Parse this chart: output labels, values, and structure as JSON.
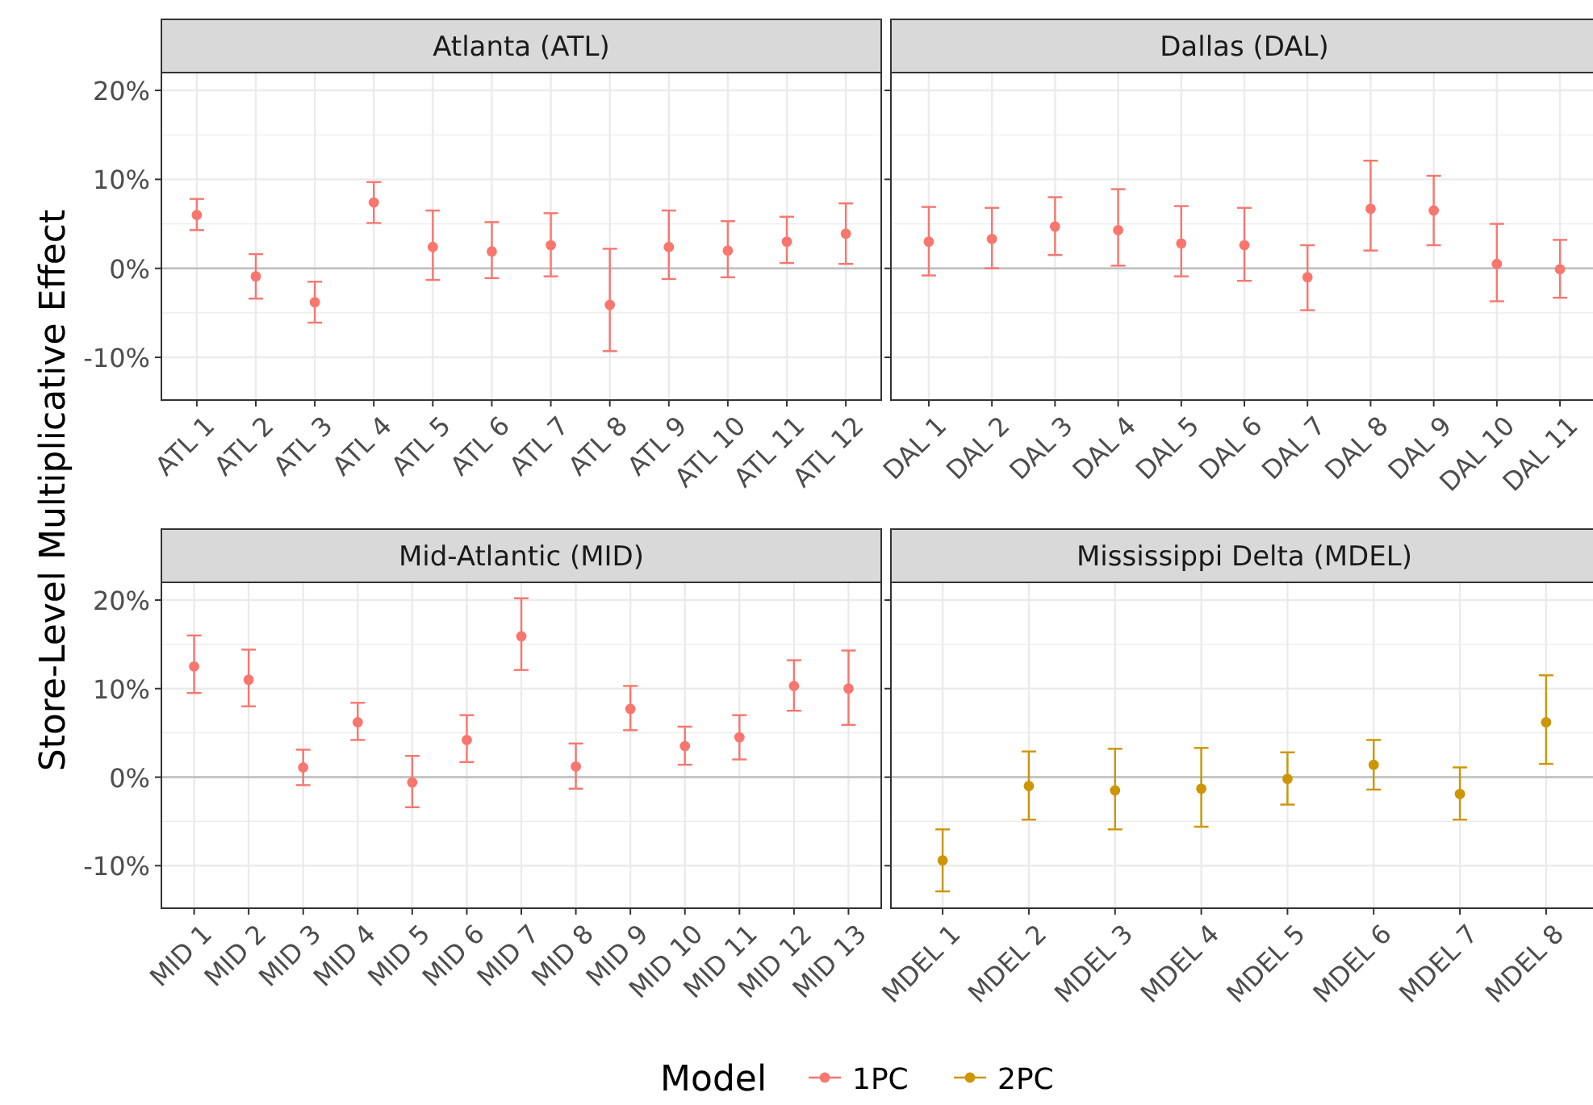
{
  "chart_data": [
    {
      "type": "scatter",
      "title": "Atlanta (ATL)",
      "ylabel": "Store-Level Multiplicative Effect",
      "categories": [
        "ATL 1",
        "ATL 2",
        "ATL 3",
        "ATL 4",
        "ATL 5",
        "ATL 6",
        "ATL 7",
        "ATL 8",
        "ATL 9",
        "ATL 10",
        "ATL 11",
        "ATL 12"
      ],
      "ylim": [
        -14.8,
        22
      ],
      "yticks": [
        {
          "value": -10,
          "label": "-10%"
        },
        {
          "value": 0,
          "label": "0%"
        },
        {
          "value": 10,
          "label": "10%"
        },
        {
          "value": 20,
          "label": "20%"
        }
      ],
      "grid": true,
      "marker": "circle",
      "ref_lines": [
        {
          "axis": "y",
          "value": 0,
          "color": "#bebebe"
        }
      ],
      "series": [
        {
          "name": "1PC",
          "color": "#f8766d",
          "values": [
            6.0,
            -0.9,
            -3.8,
            7.4,
            2.4,
            1.9,
            2.6,
            -4.1,
            2.4,
            2.0,
            3.0,
            3.9
          ],
          "errors": [
            [
              4.3,
              7.8
            ],
            [
              -3.4,
              1.6
            ],
            [
              -6.1,
              -1.5
            ],
            [
              5.1,
              9.7
            ],
            [
              -1.3,
              6.5
            ],
            [
              -1.1,
              5.2
            ],
            [
              -0.9,
              6.2
            ],
            [
              -9.3,
              2.2
            ],
            [
              -1.2,
              6.5
            ],
            [
              -1.0,
              5.3
            ],
            [
              0.6,
              5.8
            ],
            [
              0.5,
              7.3
            ]
          ]
        }
      ]
    },
    {
      "type": "scatter",
      "title": "Dallas (DAL)",
      "categories": [
        "DAL 1",
        "DAL 2",
        "DAL 3",
        "DAL 4",
        "DAL 5",
        "DAL 6",
        "DAL 7",
        "DAL 8",
        "DAL 9",
        "DAL 10",
        "DAL 11"
      ],
      "ylim": [
        -14.8,
        22
      ],
      "yticks": [
        {
          "value": -10,
          "label": null
        },
        {
          "value": 0,
          "label": null
        },
        {
          "value": 10,
          "label": null
        },
        {
          "value": 20,
          "label": null
        }
      ],
      "tick_labels": "x",
      "grid": true,
      "marker": "circle",
      "ref_lines": [
        {
          "axis": "y",
          "value": 0,
          "color": "#bebebe"
        }
      ],
      "series": [
        {
          "name": "1PC",
          "color": "#f8766d",
          "values": [
            3.0,
            3.3,
            4.7,
            4.3,
            2.8,
            2.6,
            -1.0,
            6.7,
            6.5,
            0.5,
            -0.1
          ],
          "errors": [
            [
              -0.8,
              6.9
            ],
            [
              0.0,
              6.8
            ],
            [
              1.5,
              8.0
            ],
            [
              0.3,
              8.9
            ],
            [
              -0.9,
              7.0
            ],
            [
              -1.4,
              6.8
            ],
            [
              -4.7,
              2.6
            ],
            [
              2.0,
              12.1
            ],
            [
              2.6,
              10.4
            ],
            [
              -3.7,
              5.0
            ],
            [
              -3.3,
              3.2
            ]
          ]
        }
      ]
    },
    {
      "type": "scatter",
      "title": "Mid-Atlantic (MID)",
      "categories": [
        "MID 1",
        "MID 2",
        "MID 3",
        "MID 4",
        "MID 5",
        "MID 6",
        "MID 7",
        "MID 8",
        "MID 9",
        "MID 10",
        "MID 11",
        "MID 12",
        "MID 13"
      ],
      "ylim": [
        -14.8,
        22
      ],
      "yticks": [
        {
          "value": -10,
          "label": "-10%"
        },
        {
          "value": 0,
          "label": "0%"
        },
        {
          "value": 10,
          "label": "10%"
        },
        {
          "value": 20,
          "label": "20%"
        }
      ],
      "grid": true,
      "marker": "circle",
      "ref_lines": [
        {
          "axis": "y",
          "value": 0,
          "color": "#bebebe"
        }
      ],
      "series": [
        {
          "name": "1PC",
          "color": "#f8766d",
          "values": [
            12.5,
            11.0,
            1.1,
            6.2,
            -0.6,
            4.2,
            15.9,
            1.2,
            7.7,
            3.5,
            4.5,
            10.3,
            10.0
          ],
          "errors": [
            [
              9.5,
              16.0
            ],
            [
              8.0,
              14.4
            ],
            [
              -0.9,
              3.1
            ],
            [
              4.2,
              8.4
            ],
            [
              -3.4,
              2.4
            ],
            [
              1.7,
              7.0
            ],
            [
              12.1,
              20.2
            ],
            [
              -1.3,
              3.8
            ],
            [
              5.3,
              10.3
            ],
            [
              1.4,
              5.7
            ],
            [
              2.0,
              7.0
            ],
            [
              7.5,
              13.2
            ],
            [
              5.9,
              14.3
            ]
          ]
        }
      ]
    },
    {
      "type": "scatter",
      "title": "Mississippi Delta (MDEL)",
      "categories": [
        "MDEL 1",
        "MDEL 2",
        "MDEL 3",
        "MDEL 4",
        "MDEL 5",
        "MDEL 6",
        "MDEL 7",
        "MDEL 8"
      ],
      "ylim": [
        -14.8,
        22
      ],
      "yticks": [
        {
          "value": -10,
          "label": null
        },
        {
          "value": 0,
          "label": null
        },
        {
          "value": 10,
          "label": null
        },
        {
          "value": 20,
          "label": null
        }
      ],
      "tick_labels": "x",
      "grid": true,
      "marker": "circle",
      "legend": "bottom",
      "legend_title": "Model",
      "ref_lines": [
        {
          "axis": "y",
          "value": 0,
          "color": "#bebebe"
        }
      ],
      "series": [
        {
          "name": "2PC",
          "color": "#cd9600",
          "values": [
            -9.4,
            -1.0,
            -1.5,
            -1.3,
            -0.2,
            1.4,
            -1.9,
            6.2
          ],
          "errors": [
            [
              -12.9,
              -5.9
            ],
            [
              -4.8,
              2.9
            ],
            [
              -5.9,
              3.2
            ],
            [
              -5.6,
              3.3
            ],
            [
              -3.1,
              2.8
            ],
            [
              -1.4,
              4.2
            ],
            [
              -4.8,
              1.1
            ],
            [
              1.5,
              11.5
            ]
          ]
        }
      ]
    }
  ]
}
